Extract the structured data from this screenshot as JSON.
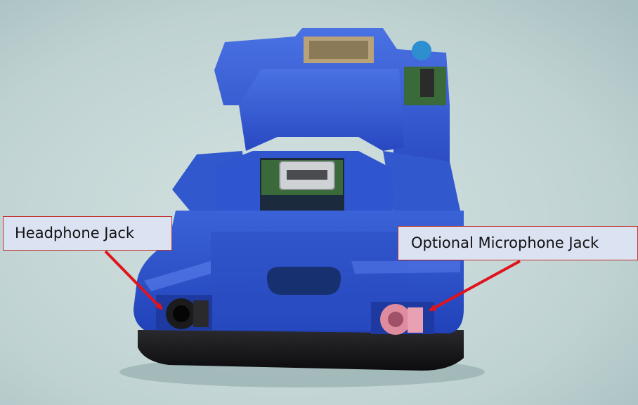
{
  "callouts": {
    "headphone_label": "Headphone Jack",
    "microphone_label": "Optional Microphone Jack"
  },
  "colors": {
    "background": "#bfd3d3",
    "enclosure": "#2d55cc",
    "base": "#141416",
    "label_fill": "#dbe3f3",
    "label_border": "#c0322c",
    "arrow": "#e0141c",
    "headphone_jack": "#1b1b1d",
    "microphone_jack": "#e08c9f",
    "pcb": "#3a6a3a"
  },
  "icons": {
    "headphone_port": "audio-jack-black",
    "microphone_port": "audio-jack-pink",
    "usb_port": "micro-usb-port"
  }
}
